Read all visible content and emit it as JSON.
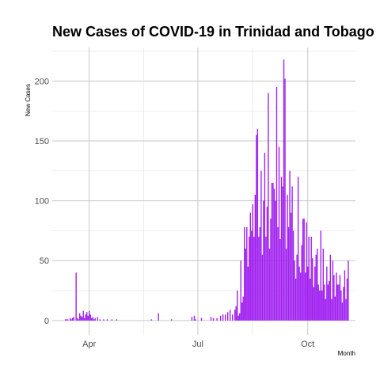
{
  "chart_data": {
    "type": "bar",
    "title": "New Cases of COVID-19 in Trinidad and Tobago",
    "xlabel": "Month",
    "ylabel": "New Cases",
    "x_tick_labels": [
      {
        "date": "2020-04-01",
        "label": "Apr"
      },
      {
        "date": "2020-07-01",
        "label": "Jul"
      },
      {
        "date": "2020-10-01",
        "label": "Oct"
      }
    ],
    "y_ticks": [
      0,
      50,
      100,
      150,
      200
    ],
    "xlim": [
      "2020-03-01",
      "2020-11-10"
    ],
    "ylim": [
      -12,
      228
    ],
    "grid": true,
    "color": "#a020f0",
    "series": [
      {
        "x": [
          "2020-03-12",
          "2020-03-13",
          "2020-03-14",
          "2020-03-15",
          "2020-03-16",
          "2020-03-17",
          "2020-03-18",
          "2020-03-19",
          "2020-03-20",
          "2020-03-21",
          "2020-03-22",
          "2020-03-23",
          "2020-03-24",
          "2020-03-25",
          "2020-03-26",
          "2020-03-27",
          "2020-03-28",
          "2020-03-29",
          "2020-03-30",
          "2020-03-31",
          "2020-04-01",
          "2020-04-02",
          "2020-04-03",
          "2020-04-04",
          "2020-04-05",
          "2020-04-06",
          "2020-04-08",
          "2020-04-10",
          "2020-04-13",
          "2020-04-16",
          "2020-04-20",
          "2020-04-24",
          "2020-05-23",
          "2020-05-29",
          "2020-06-09",
          "2020-06-26",
          "2020-06-28",
          "2020-06-29",
          "2020-07-04",
          "2020-07-12",
          "2020-07-14",
          "2020-07-17",
          "2020-07-20",
          "2020-07-22",
          "2020-07-24",
          "2020-07-26",
          "2020-07-28",
          "2020-07-30",
          "2020-08-01",
          "2020-08-02",
          "2020-08-03",
          "2020-08-04",
          "2020-08-05",
          "2020-08-06",
          "2020-08-07",
          "2020-08-08",
          "2020-08-09",
          "2020-08-10",
          "2020-08-11",
          "2020-08-12",
          "2020-08-13",
          "2020-08-14",
          "2020-08-15",
          "2020-08-16",
          "2020-08-17",
          "2020-08-18",
          "2020-08-19",
          "2020-08-20",
          "2020-08-21",
          "2020-08-22",
          "2020-08-23",
          "2020-08-24",
          "2020-08-25",
          "2020-08-26",
          "2020-08-27",
          "2020-08-28",
          "2020-08-29",
          "2020-08-30",
          "2020-08-31",
          "2020-09-01",
          "2020-09-02",
          "2020-09-03",
          "2020-09-04",
          "2020-09-05",
          "2020-09-06",
          "2020-09-07",
          "2020-09-08",
          "2020-09-09",
          "2020-09-10",
          "2020-09-11",
          "2020-09-12",
          "2020-09-13",
          "2020-09-14",
          "2020-09-15",
          "2020-09-16",
          "2020-09-17",
          "2020-09-18",
          "2020-09-19",
          "2020-09-20",
          "2020-09-21",
          "2020-09-22",
          "2020-09-23",
          "2020-09-24",
          "2020-09-25",
          "2020-09-26",
          "2020-09-27",
          "2020-09-28",
          "2020-09-29",
          "2020-09-30",
          "2020-10-01",
          "2020-10-02",
          "2020-10-03",
          "2020-10-04",
          "2020-10-05",
          "2020-10-06",
          "2020-10-07",
          "2020-10-08",
          "2020-10-09",
          "2020-10-10",
          "2020-10-11",
          "2020-10-12",
          "2020-10-13",
          "2020-10-14",
          "2020-10-15",
          "2020-10-16",
          "2020-10-17",
          "2020-10-18",
          "2020-10-19",
          "2020-10-20",
          "2020-10-21",
          "2020-10-22",
          "2020-10-23",
          "2020-10-24",
          "2020-10-25",
          "2020-10-26",
          "2020-10-27",
          "2020-10-28",
          "2020-10-29",
          "2020-10-30",
          "2020-10-31",
          "2020-11-01",
          "2020-11-02",
          "2020-11-03",
          "2020-11-04"
        ],
        "values": [
          1,
          1,
          1,
          0,
          2,
          1,
          2,
          3,
          0,
          40,
          2,
          1,
          6,
          4,
          3,
          8,
          2,
          5,
          7,
          4,
          8,
          5,
          2,
          3,
          1,
          2,
          3,
          1,
          1,
          1,
          1,
          1,
          1,
          6,
          1,
          3,
          4,
          1,
          2,
          3,
          2,
          2,
          4,
          5,
          5,
          7,
          9,
          5,
          9,
          12,
          25,
          4,
          6,
          50,
          15,
          20,
          78,
          60,
          78,
          45,
          70,
          90,
          75,
          97,
          70,
          105,
          155,
          160,
          70,
          78,
          125,
          55,
          100,
          140,
          70,
          95,
          190,
          60,
          85,
          115,
          115,
          110,
          100,
          195,
          78,
          145,
          68,
          120,
          112,
          218,
          202,
          60,
          105,
          78,
          125,
          90,
          112,
          75,
          50,
          35,
          55,
          120,
          45,
          40,
          63,
          85,
          85,
          40,
          82,
          45,
          70,
          35,
          70,
          52,
          28,
          45,
          55,
          60,
          30,
          25,
          75,
          25,
          60,
          30,
          18,
          45,
          30,
          33,
          55,
          18,
          50,
          38,
          20,
          40,
          30,
          30,
          38,
          25,
          15,
          28,
          42,
          18,
          35,
          50
        ]
      }
    ]
  }
}
